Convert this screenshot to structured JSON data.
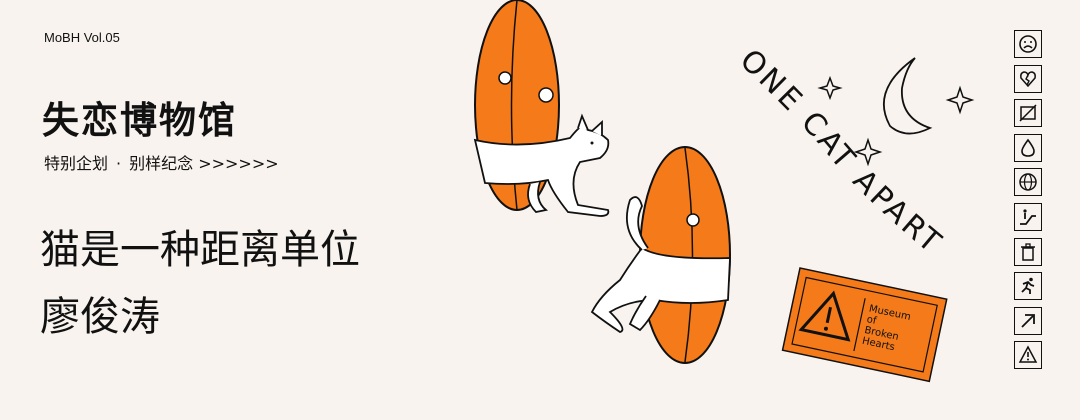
{
  "vol": "MoBH Vol.05",
  "title": "失恋博物馆",
  "subtitle": {
    "part1": "特别企划",
    "sep": "·",
    "part2": "别样纪念 >>>>>>"
  },
  "headline": "猫是一种距离单位",
  "author": "廖俊涛",
  "art": {
    "arc_text": "ONE CAT APART",
    "ticket": {
      "lines": [
        "Museum",
        "of",
        "Broken",
        "Hearts"
      ]
    }
  },
  "icons": [
    "sad-face-icon",
    "broken-heart-icon",
    "no-image-icon",
    "drop-icon",
    "globe-icon",
    "escalator-icon",
    "trash-icon",
    "running-icon",
    "arrow-up-right-icon",
    "warning-icon"
  ],
  "colors": {
    "accent": "#f47a1a",
    "background": "#f8f3ee",
    "ink": "#111111"
  }
}
